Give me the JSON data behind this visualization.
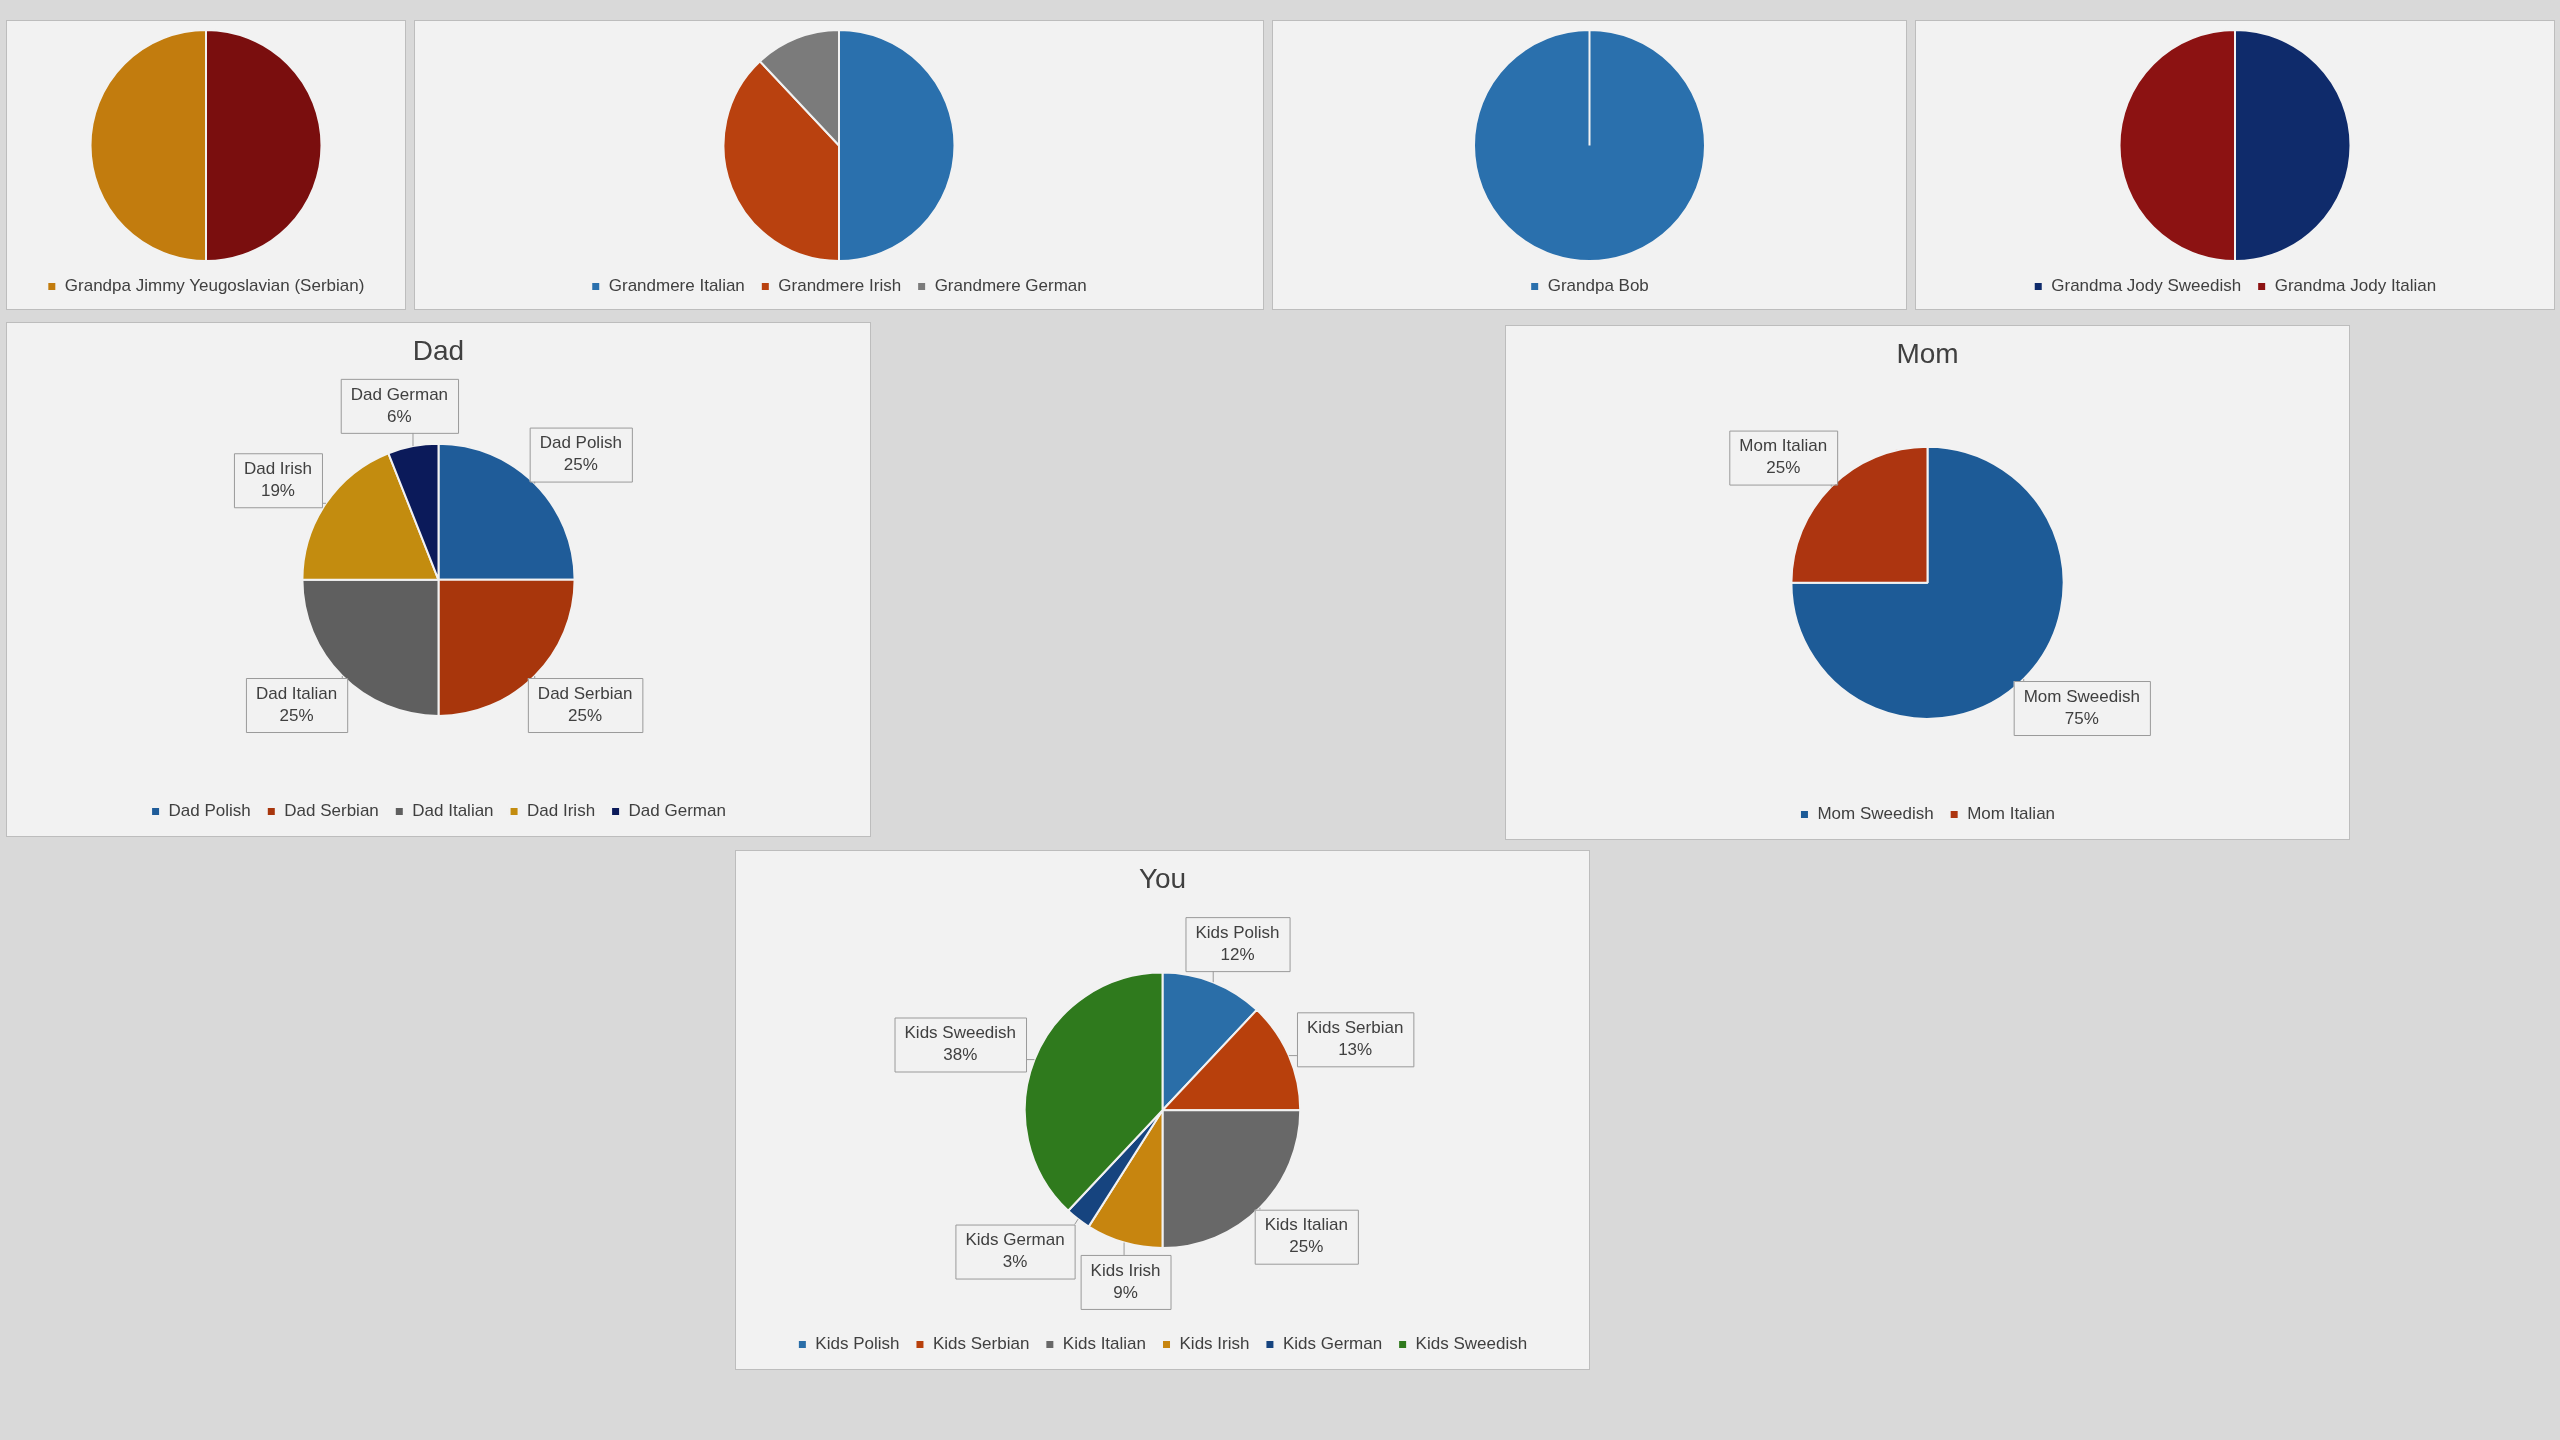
{
  "chart_data": [
    {
      "type": "pie",
      "categories": [
        null,
        "Grandpa Jimmy Yeugoslavian (Serbian)"
      ],
      "values": [
        50,
        50
      ],
      "colors": [
        "#7a0e0e",
        "#c27c0e"
      ],
      "legend": "bottom"
    },
    {
      "type": "pie",
      "categories": [
        "Grandmere Italian",
        "Grandmere Irish",
        "Grandmere German"
      ],
      "values": [
        50,
        38,
        12
      ],
      "colors": [
        "#2a70ad",
        "#b9410f",
        "#7b7b7b"
      ],
      "legend": "bottom"
    },
    {
      "type": "pie",
      "categories": [
        "Grandpa Bob"
      ],
      "values": [
        100
      ],
      "colors": [
        "#2a70ad"
      ],
      "legend": "bottom"
    },
    {
      "type": "pie",
      "categories": [
        "Grandma Jody Sweedish",
        "Grandma Jody Italian"
      ],
      "values": [
        50,
        50
      ],
      "colors": [
        "#0f2b6b",
        "#8c1212"
      ],
      "legend": "bottom"
    },
    {
      "type": "pie",
      "title": "Dad",
      "categories": [
        "Dad Polish",
        "Dad Serbian",
        "Dad Italian",
        "Dad Irish",
        "Dad German"
      ],
      "values": [
        25,
        25,
        25,
        19,
        6
      ],
      "value_labels": [
        "25%",
        "25%",
        "25%",
        "19%",
        "6%"
      ],
      "colors": [
        "#1f5c99",
        "#a8360c",
        "#5f5f5f",
        "#c38c0f",
        "#0b1a5a"
      ],
      "legend": "bottom"
    },
    {
      "type": "pie",
      "title": "Mom",
      "categories": [
        "Mom Sweedish",
        "Mom Italian"
      ],
      "values": [
        75,
        25
      ],
      "value_labels": [
        "75%",
        "25%"
      ],
      "colors": [
        "#1d5b97",
        "#ad3510"
      ],
      "legend": "bottom"
    },
    {
      "type": "pie",
      "title": "You",
      "categories": [
        "Kids Polish",
        "Kids Serbian",
        "Kids Italian",
        "Kids Irish",
        "Kids German",
        "Kids Sweedish"
      ],
      "values": [
        12,
        13,
        25,
        9,
        3,
        38
      ],
      "value_labels": [
        "12%",
        "13%",
        "25%",
        "9%",
        "3%",
        "38%"
      ],
      "colors": [
        "#2a6ea8",
        "#b8400c",
        "#686868",
        "#c7850f",
        "#16447f",
        "#2f7a1d"
      ],
      "legend": "bottom"
    }
  ]
}
